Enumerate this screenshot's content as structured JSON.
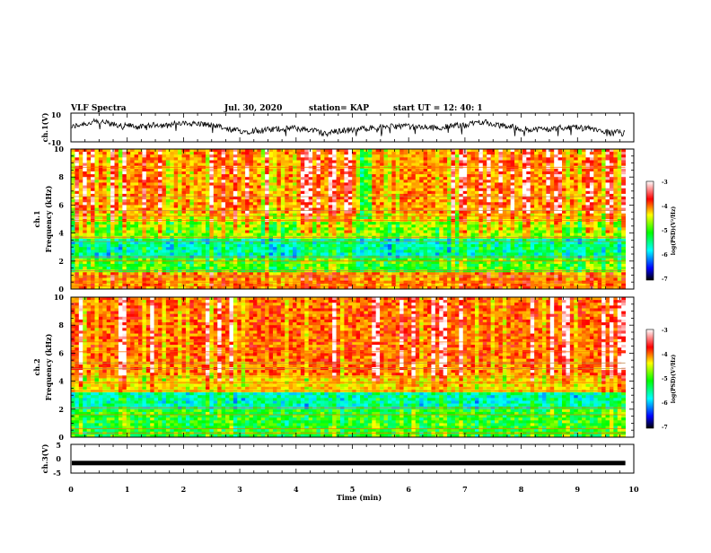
{
  "header": {
    "title": "VLF Spectra",
    "date": "Jul. 30, 2020",
    "station": "station= KAP",
    "start_ut": "start UT =  12: 40: 1"
  },
  "chart_data": {
    "type": "heatmap",
    "title": "VLF Spectra",
    "xlabel": "Time (min)",
    "xlim": [
      0,
      10
    ],
    "x_ticks": [
      "0",
      "1",
      "2",
      "3",
      "4",
      "5",
      "6",
      "7",
      "8",
      "9",
      "10"
    ],
    "panels": [
      {
        "id": "ch1_waveform",
        "type": "line",
        "ylabel": "ch.1(V)",
        "ylim": [
          -10,
          10
        ],
        "y_ticks": [
          "10",
          "-10"
        ],
        "approx_range": [
          -6,
          6
        ]
      },
      {
        "id": "ch1_spectrogram",
        "type": "heatmap",
        "ylabel_line1": "ch.1",
        "ylabel_line2": "Frequency (kHz)",
        "ylim": [
          0,
          10
        ],
        "y_ticks": [
          "0",
          "2",
          "4",
          "6",
          "8",
          "10"
        ],
        "colorbar": {
          "label": "log(PSD)(V²/Hz)",
          "range": [
            -7,
            -3
          ],
          "ticks": [
            "-3",
            "-4",
            "-5",
            "-6",
            "-7"
          ]
        }
      },
      {
        "id": "ch2_spectrogram",
        "type": "heatmap",
        "ylabel_line1": "ch.2",
        "ylabel_line2": "Frequency (kHz)",
        "ylim": [
          0,
          10
        ],
        "y_ticks": [
          "0",
          "2",
          "4",
          "6",
          "8",
          "10"
        ],
        "colorbar": {
          "label": "log(PSD)(V²/Hz)",
          "range": [
            -7,
            -3
          ],
          "ticks": [
            "-3",
            "-4",
            "-5",
            "-6",
            "-7"
          ]
        }
      },
      {
        "id": "ch3_waveform",
        "type": "line",
        "ylabel": "ch.3(V)",
        "ylim": [
          -5,
          5
        ],
        "y_ticks": [
          "5",
          "0",
          "-5"
        ],
        "approx_level": -1.5
      }
    ],
    "data_end_min": 9.85
  },
  "colors": {
    "colormap": [
      "#000080",
      "#0000ff",
      "#00ffff",
      "#00ff00",
      "#ffff00",
      "#ff8000",
      "#ff0000",
      "#ffffff"
    ]
  }
}
